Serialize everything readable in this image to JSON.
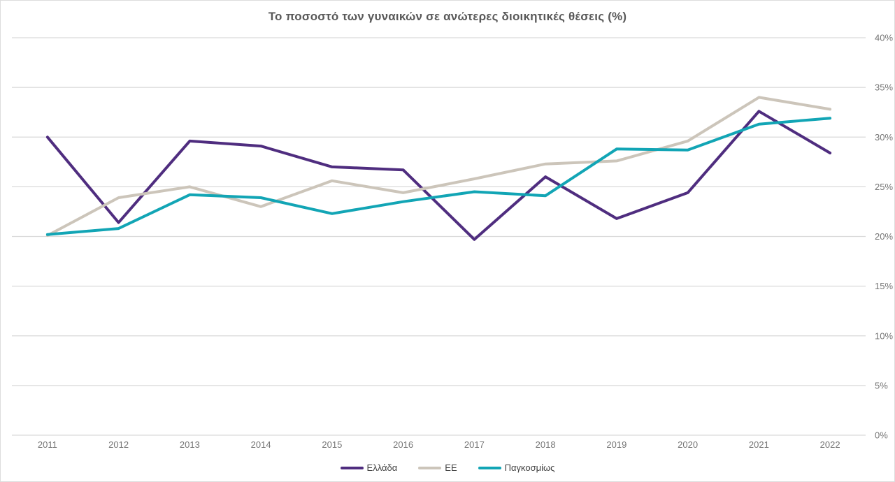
{
  "title": "Το ποσοστό των γυναικών σε ανώτερες διοικητικές θέσεις (%)",
  "chart_data": {
    "type": "line",
    "title": "Το ποσοστό των γυναικών σε ανώτερες διοικητικές θέσεις (%)",
    "categories": [
      "2011",
      "2012",
      "2013",
      "2014",
      "2015",
      "2016",
      "2017",
      "2018",
      "2019",
      "2020",
      "2021",
      "2022"
    ],
    "series": [
      {
        "name": "Ελλάδα",
        "color": "#4F2D7F",
        "values": [
          30.0,
          21.4,
          29.6,
          29.1,
          27.0,
          26.7,
          19.7,
          26.0,
          21.8,
          24.4,
          32.6,
          28.4
        ]
      },
      {
        "name": "ΕΕ",
        "color": "#CCC5BA",
        "values": [
          20.1,
          23.9,
          25.0,
          23.0,
          25.6,
          24.4,
          25.8,
          27.3,
          27.6,
          29.6,
          34.0,
          32.8
        ]
      },
      {
        "name": "Παγκοσμίως",
        "color": "#12A5B5",
        "values": [
          20.2,
          20.8,
          24.2,
          23.9,
          22.3,
          23.5,
          24.5,
          24.1,
          28.8,
          28.7,
          31.3,
          31.9
        ]
      }
    ],
    "xlabel": "",
    "ylabel": "",
    "ylim": [
      0,
      40
    ],
    "ytick_step": 5,
    "ytick_labels": [
      "0%",
      "5%",
      "10%",
      "15%",
      "20%",
      "25%",
      "30%",
      "35%",
      "40%"
    ],
    "yaxis_side": "right",
    "grid": true,
    "legend_position": "bottom"
  },
  "colors": {
    "gridline": "#D9D9D9",
    "title_text": "#595959",
    "axis_text": "#757575",
    "legend_text": "#404040",
    "background": "#FFFFFF"
  }
}
